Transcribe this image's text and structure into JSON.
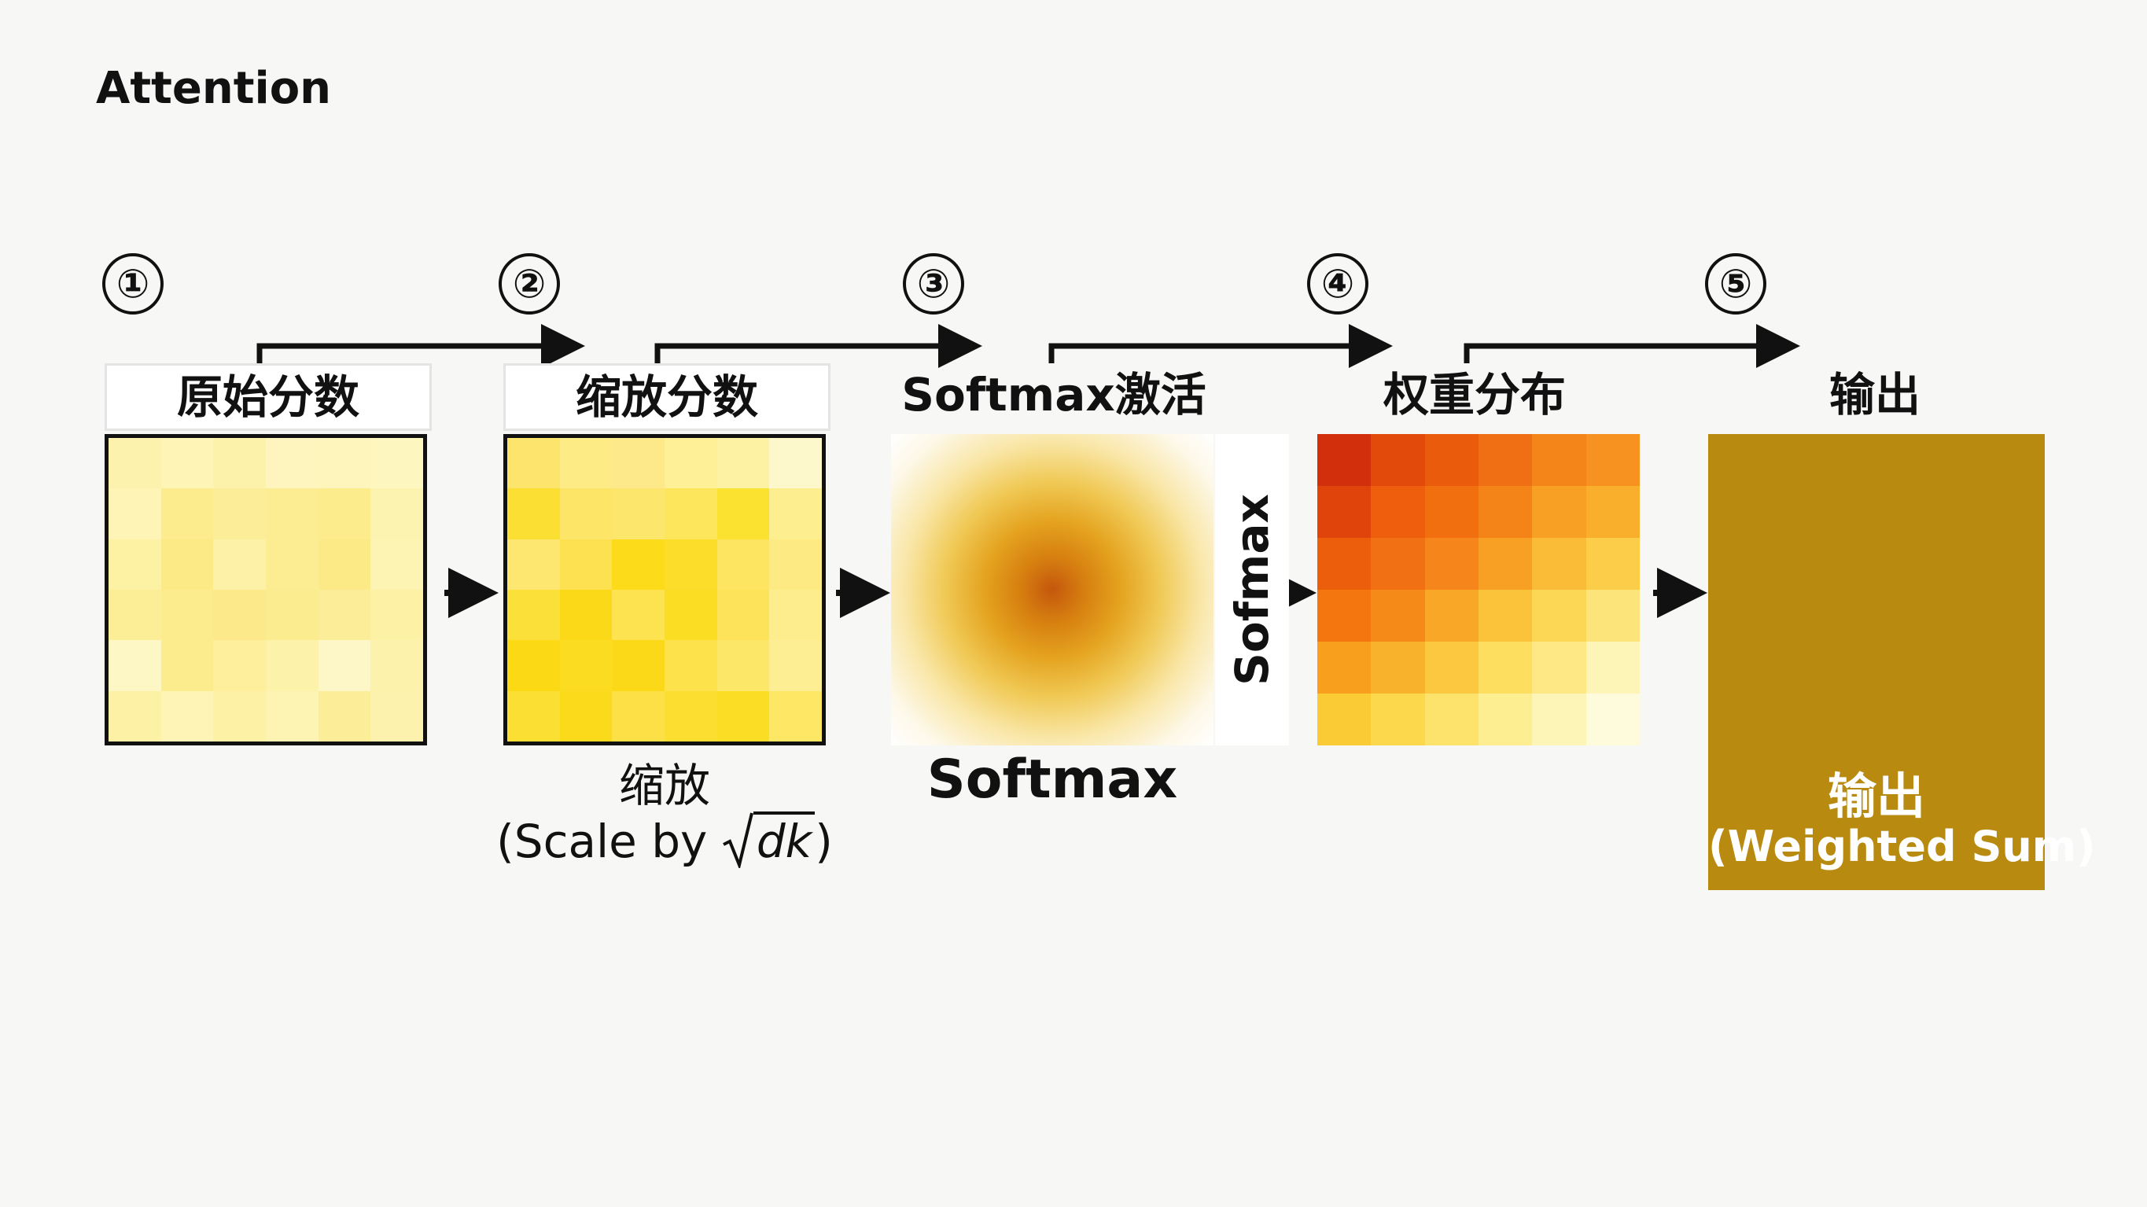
{
  "title": "Attention",
  "steps": [
    {
      "num": "①",
      "label": "原始分数"
    },
    {
      "num": "②",
      "label": "缩放分数"
    },
    {
      "num": "③",
      "label": "Softmax激活"
    },
    {
      "num": "④",
      "label": "权重分布"
    },
    {
      "num": "⑤",
      "label": "输出"
    }
  ],
  "stage2_caption": {
    "line1": "缩放",
    "line2_prefix": "(Scale by ",
    "line2_sqrt": "dk",
    "line2_suffix": ")"
  },
  "stage3_caption": "Softmax",
  "vertical_label": "Sofmax",
  "output": {
    "line1": "输出",
    "line2": "(Weighted Sum)"
  },
  "colors": {
    "raw_scores": [
      [
        "#fdf2ad",
        "#fdf4b6",
        "#fdf2aa",
        "#fdf5bd",
        "#fdf5bc",
        "#fdf6bf"
      ],
      [
        "#fdf4b5",
        "#fcec8e",
        "#fcee98",
        "#fced92",
        "#fcec8c",
        "#fdf3b0"
      ],
      [
        "#fdf1a4",
        "#fcea86",
        "#fdf1a8",
        "#fced92",
        "#fcea87",
        "#fdf3b2"
      ],
      [
        "#fcee97",
        "#fcec8e",
        "#fcea8a",
        "#fcec90",
        "#fcee99",
        "#fdf1a6"
      ],
      [
        "#fdf7c6",
        "#fcec8e",
        "#fdef9c",
        "#fdf2aa",
        "#fdf7c8",
        "#fdf2ab"
      ],
      [
        "#fdf1a6",
        "#fdf4b6",
        "#fdf1a6",
        "#fdf3b3",
        "#fcee98",
        "#fdf2ad"
      ]
    ],
    "scaled_scores": [
      [
        "#fde56d",
        "#fdeb86",
        "#fde98a",
        "#fdf097",
        "#fdf1a3",
        "#fdf8cc"
      ],
      [
        "#fbe033",
        "#fde567",
        "#fde66c",
        "#fde65b",
        "#fbe130",
        "#fdee8f"
      ],
      [
        "#fde771",
        "#fde150",
        "#fbdb1a",
        "#fbdd2a",
        "#fde561",
        "#fdea82"
      ],
      [
        "#fbe03a",
        "#fbd918",
        "#fde350",
        "#fbdd24",
        "#fde359",
        "#fded8c"
      ],
      [
        "#fbd914",
        "#fbdc21",
        "#fbd918",
        "#fde24c",
        "#fde769",
        "#fdee94"
      ],
      [
        "#fcdf33",
        "#fbda1b",
        "#fde045",
        "#fbde2f",
        "#fbdd25",
        "#fde765"
      ]
    ],
    "weights": [
      [
        "#d2300c",
        "#e24a0c",
        "#ea5c0c",
        "#f06f14",
        "#f38519",
        "#f7911f"
      ],
      [
        "#e1440a",
        "#ee5e0d",
        "#f16f0f",
        "#f48418",
        "#f7a024",
        "#f9ae2c"
      ],
      [
        "#ed5e0c",
        "#f27014",
        "#f6861b",
        "#f7a024",
        "#fabb36",
        "#fbcd48"
      ],
      [
        "#f3760f",
        "#f58a18",
        "#f9a727",
        "#fbc33a",
        "#fcd755",
        "#fde47a"
      ],
      [
        "#f89f1e",
        "#f9b22c",
        "#fbc83f",
        "#fdde5e",
        "#fde885",
        "#fdf4b7"
      ],
      [
        "#fbcb36",
        "#fcd84c",
        "#fde36b",
        "#fdee92",
        "#fdf4b8",
        "#fefadc"
      ]
    ],
    "output_fill": "#b88a10",
    "softmax_center": "#c4570d"
  }
}
